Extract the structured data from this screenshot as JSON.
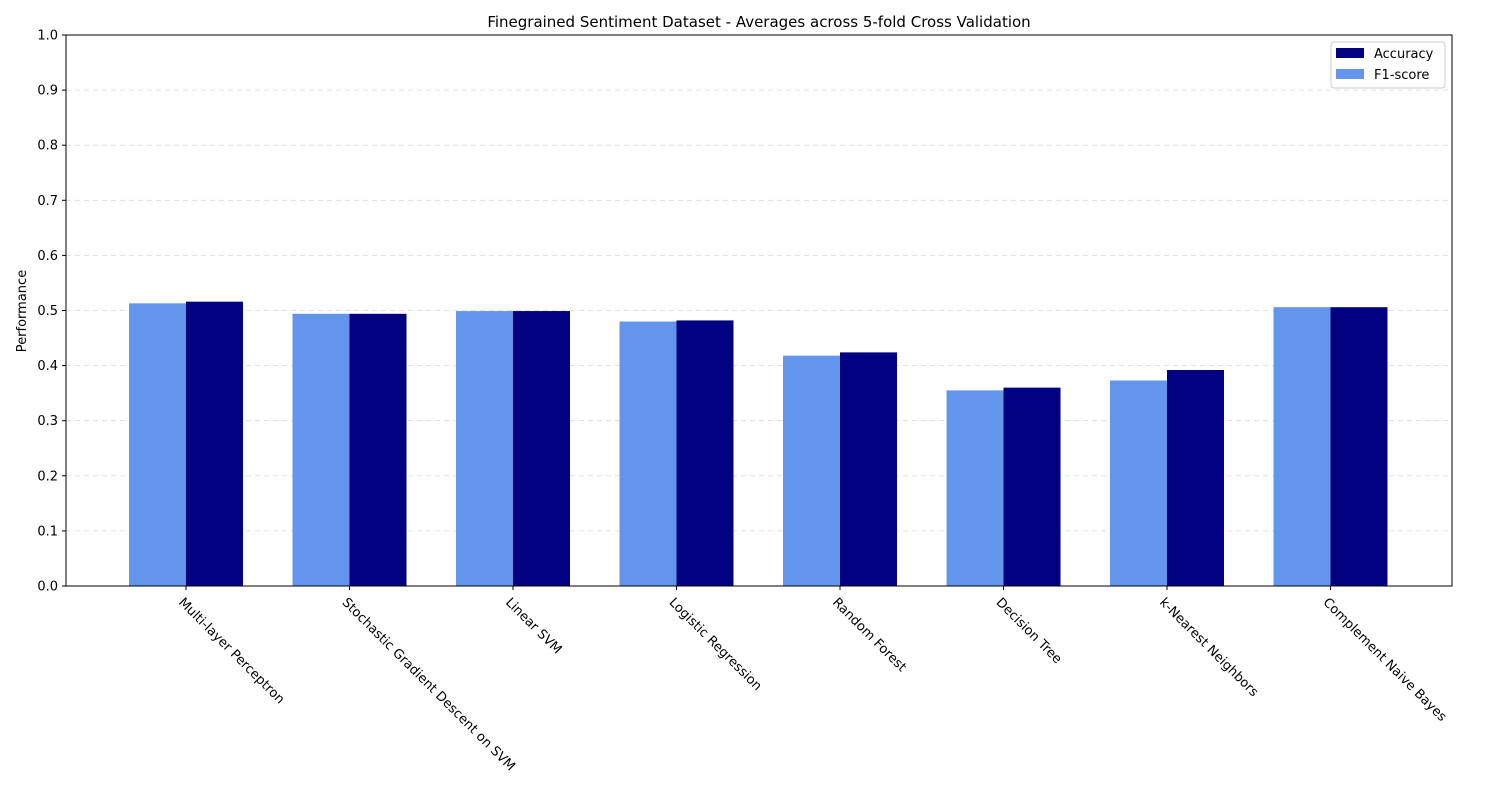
{
  "chart_data": {
    "type": "bar",
    "title": "Finegrained Sentiment Dataset - Averages across 5-fold Cross Validation",
    "xlabel": "",
    "ylabel": "Performance",
    "ylim": [
      0,
      1.0
    ],
    "yticks": [
      "0.0",
      "0.1",
      "0.2",
      "0.3",
      "0.4",
      "0.5",
      "0.6",
      "0.7",
      "0.8",
      "0.9",
      "1.0"
    ],
    "grid": "horizontal-dashed",
    "legend_position": "top-right",
    "categories": [
      "Multi-layer Perceptron",
      "Stochastic Gradient Descent on SVM",
      "Linear SVM",
      "Logistic Regression",
      "Random Forest",
      "Decision Tree",
      "k-Nearest Neighbors",
      "Complement Naive Bayes"
    ],
    "series": [
      {
        "name": "F1-score",
        "color": "#6495ed",
        "values": [
          0.513,
          0.494,
          0.499,
          0.48,
          0.418,
          0.355,
          0.373,
          0.506
        ]
      },
      {
        "name": "Accuracy",
        "color": "#000080",
        "values": [
          0.516,
          0.494,
          0.499,
          0.482,
          0.424,
          0.36,
          0.392,
          0.506
        ]
      }
    ],
    "legend_order": [
      "Accuracy",
      "F1-score"
    ]
  }
}
